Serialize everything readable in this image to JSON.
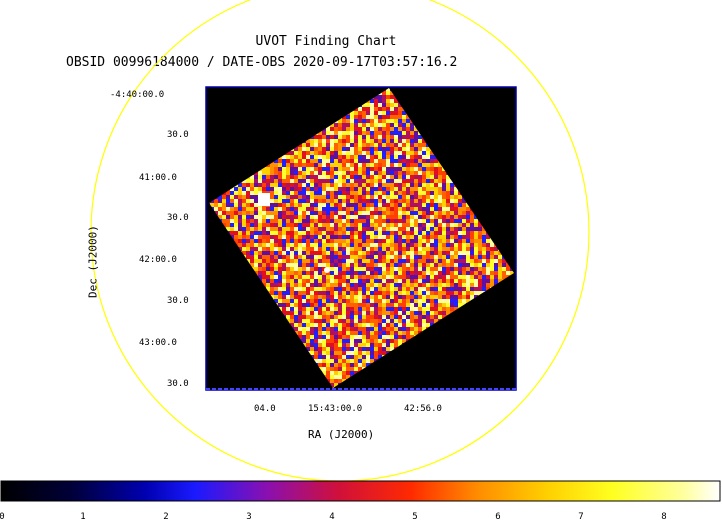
{
  "title": "UVOT Finding Chart",
  "subtitle": "OBSID 00996184000 / DATE-OBS 2020-09-17T03:57:16.2",
  "dec_ticks": [
    "-4:40:00.0",
    "30.0",
    "41:00.0",
    "30.0",
    "42:00.0",
    "30.0",
    "43:00.0",
    "30.0"
  ],
  "ra_ticks": [
    "04.0",
    "15:43:00.0",
    "42:56.0"
  ],
  "xlabel": "RA (J2000)",
  "ylabel": "Dec (J2000)",
  "colorbar_ticks": [
    "0",
    "1",
    "2",
    "3",
    "4",
    "5",
    "6",
    "7",
    "8"
  ],
  "colors": {
    "circle": "#ffff00",
    "frame": "#0000aa",
    "background": "#000000"
  }
}
